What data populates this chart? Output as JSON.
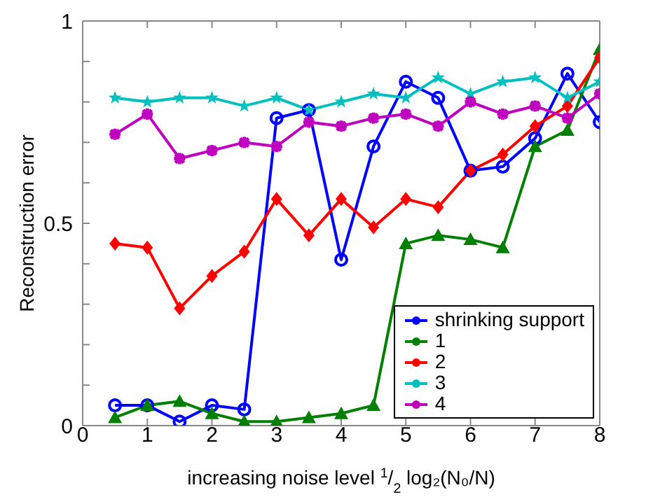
{
  "chart_data": {
    "type": "line",
    "xlabel": "increasing noise level  $^{1}$/$_{2}$ log₂(N₀/N)",
    "ylabel": "Reconstruction error",
    "x": [
      0.5,
      1,
      1.5,
      2,
      2.5,
      3,
      3.5,
      4,
      4.5,
      5,
      5.5,
      6,
      6.5,
      7,
      7.5,
      8
    ],
    "series": [
      {
        "name": "shrinking support",
        "color": "#0000ff",
        "marker": "circle",
        "values": [
          0.05,
          0.05,
          0.01,
          0.05,
          0.04,
          0.76,
          0.78,
          0.41,
          0.69,
          0.85,
          0.81,
          0.63,
          0.64,
          0.71,
          0.87,
          0.75
        ]
      },
      {
        "name": "1",
        "color": "#008000",
        "marker": "triangle",
        "values": [
          0.02,
          0.05,
          0.06,
          0.03,
          0.01,
          0.01,
          0.02,
          0.03,
          0.05,
          0.45,
          0.47,
          0.46,
          0.44,
          0.69,
          0.73,
          0.93
        ]
      },
      {
        "name": "2",
        "color": "#ff0000",
        "marker": "diamond",
        "values": [
          0.45,
          0.44,
          0.29,
          0.37,
          0.43,
          0.56,
          0.47,
          0.56,
          0.49,
          0.56,
          0.54,
          0.63,
          0.67,
          0.74,
          0.79,
          0.91
        ]
      },
      {
        "name": "3",
        "color": "#00bfbf",
        "marker": "star",
        "values": [
          0.81,
          0.8,
          0.81,
          0.81,
          0.79,
          0.81,
          0.78,
          0.8,
          0.82,
          0.81,
          0.86,
          0.82,
          0.85,
          0.86,
          0.81,
          0.85
        ]
      },
      {
        "name": "4",
        "color": "#bf00bf",
        "marker": "cross",
        "values": [
          0.72,
          0.77,
          0.66,
          0.68,
          0.7,
          0.69,
          0.75,
          0.74,
          0.76,
          0.77,
          0.74,
          0.8,
          0.77,
          0.79,
          0.76,
          0.82
        ]
      }
    ],
    "xlim": [
      0,
      8
    ],
    "xticks": [
      0,
      1,
      2,
      3,
      4,
      5,
      6,
      7,
      8
    ],
    "ylim": [
      0,
      1
    ],
    "yticks": [
      0,
      {
        "value": 0.1,
        "label": null
      },
      {
        "value": 0.2,
        "label": null
      },
      {
        "value": 0.3,
        "label": null
      },
      {
        "value": 0.4,
        "label": null
      },
      0.5,
      {
        "value": 0.6,
        "label": null
      },
      {
        "value": 0.7,
        "label": null
      },
      {
        "value": 0.8,
        "label": null
      },
      {
        "value": 0.9,
        "label": null
      },
      1
    ],
    "legend": "bottom right",
    "grid": false,
    "line_style": "solid"
  }
}
